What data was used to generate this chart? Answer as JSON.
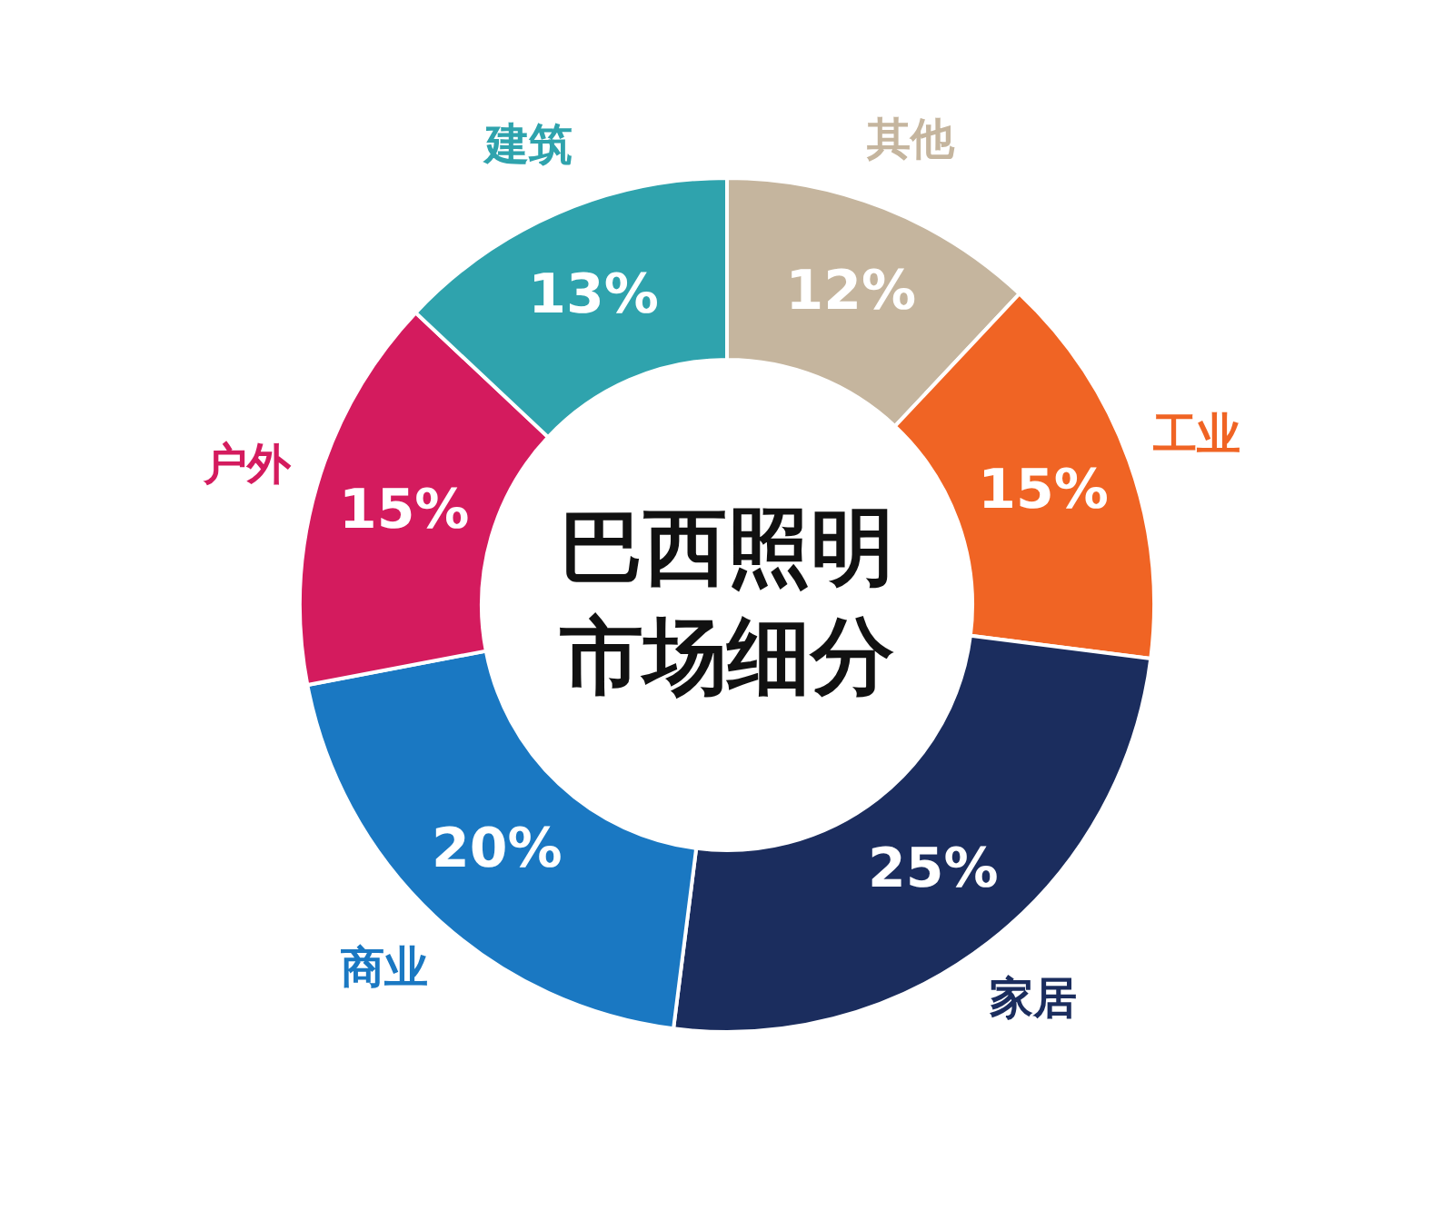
{
  "chart_data": {
    "type": "donut",
    "title": "巴西照明市场细分",
    "categories": [
      "其他",
      "工业",
      "家居",
      "商业",
      "户外",
      "建筑"
    ],
    "values": [
      12,
      15,
      25,
      20,
      15,
      13
    ],
    "value_labels": [
      "12%",
      "15%",
      "25%",
      "20%",
      "15%",
      "13%"
    ],
    "colors": [
      "#c5b59e",
      "#f06424",
      "#1b2d5e",
      "#1a78c2",
      "#d41b5e",
      "#2fa3ad"
    ]
  }
}
